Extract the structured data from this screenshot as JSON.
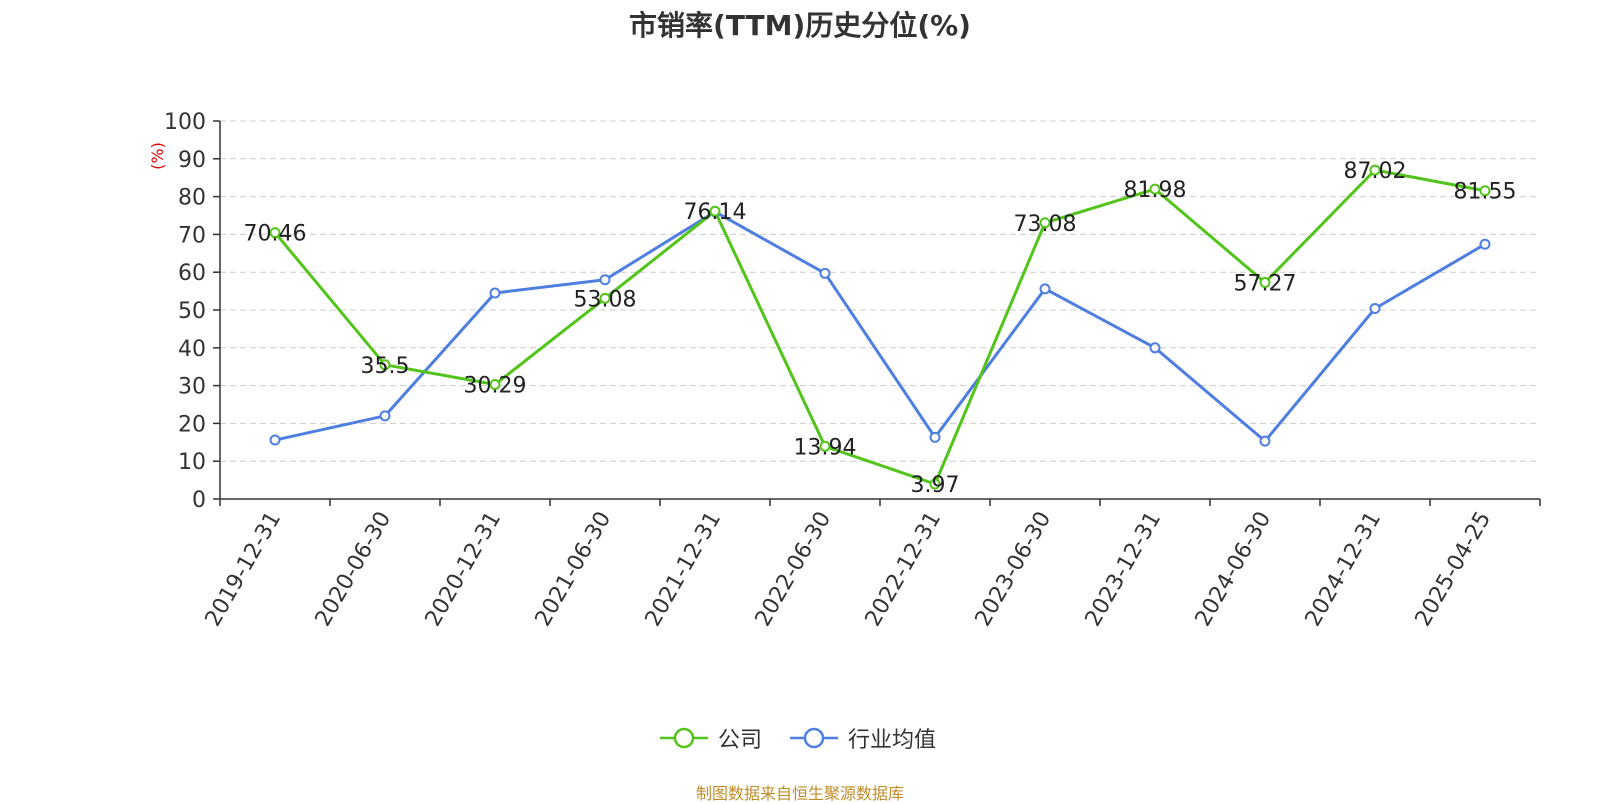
{
  "colors": {
    "company": "#52c41a",
    "industry": "#4e7fe0",
    "source": "#c08c2a",
    "unit": "#e00000"
  },
  "footer": {
    "source": "制图数据来自恒生聚源数据库"
  },
  "chart_data": {
    "type": "line",
    "title": "市销率(TTM)历史分位(%)",
    "ylabel": "(%)",
    "ylim": [
      0,
      100
    ],
    "yticks": [
      0,
      10,
      20,
      30,
      40,
      50,
      60,
      70,
      80,
      90,
      100
    ],
    "grid": true,
    "legend_position": "bottom-center",
    "categories": [
      "2019-12-31",
      "2020-06-30",
      "2020-12-31",
      "2021-06-30",
      "2021-12-31",
      "2022-06-30",
      "2022-12-31",
      "2023-06-30",
      "2023-12-31",
      "2024-06-30",
      "2024-12-31",
      "2025-04-25"
    ],
    "series": [
      {
        "name": "公司",
        "color": "#52c41a",
        "show_labels": true,
        "values": [
          70.46,
          35.5,
          30.29,
          53.08,
          76.14,
          13.94,
          3.97,
          73.08,
          81.98,
          57.27,
          87.02,
          81.55
        ]
      },
      {
        "name": "行业均值",
        "color": "#4e7fe0",
        "show_labels": false,
        "values": [
          15.6,
          22.0,
          54.5,
          58.0,
          76.0,
          59.7,
          16.3,
          55.6,
          40.0,
          15.3,
          50.4,
          67.4
        ]
      }
    ]
  }
}
